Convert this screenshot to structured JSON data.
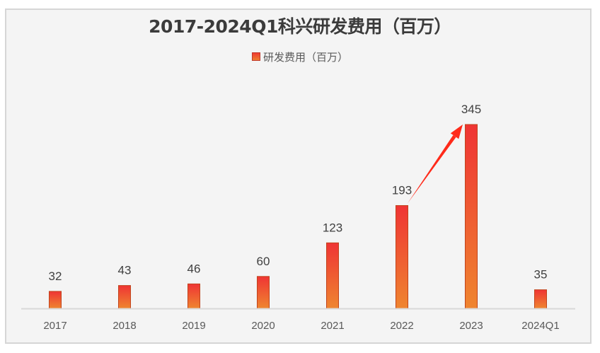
{
  "chart_data": {
    "type": "bar",
    "title": "2017-2024Q1科兴研发费用（百万）",
    "legend": {
      "position": "top",
      "entries": [
        "研发费用（百万）"
      ]
    },
    "categories": [
      "2017",
      "2018",
      "2019",
      "2020",
      "2021",
      "2022",
      "2023",
      "2024Q1"
    ],
    "series": [
      {
        "name": "研发费用（百万）",
        "values": [
          32,
          43,
          46,
          60,
          123,
          193,
          345,
          35
        ]
      }
    ],
    "data_labels": [
      "32",
      "43",
      "46",
      "60",
      "123",
      "193",
      "345",
      "35"
    ],
    "xlabel": "",
    "ylabel": "",
    "ylim": [
      0,
      345
    ],
    "grid": false,
    "annotations": [
      {
        "type": "arrow",
        "from_category": "2022",
        "to_category": "2023",
        "color": "#ff2a1a"
      }
    ],
    "colors": {
      "bar_top": "#ef3434",
      "bar_bottom": "#ef8530",
      "bar_border": "#c0441c",
      "axis": "#d9d9d9",
      "label": "#404040",
      "tick": "#595959"
    }
  }
}
